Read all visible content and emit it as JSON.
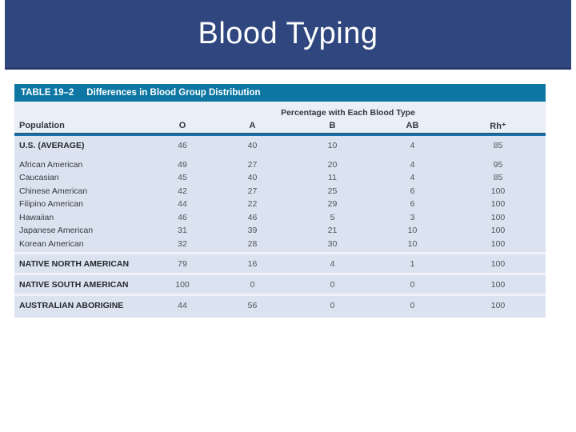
{
  "slide": {
    "title": "Blood Typing"
  },
  "table": {
    "title_label": "TABLE 19–2",
    "title_text": "Differences in Blood Group Distribution",
    "span_header": "Percentage with Each Blood Type",
    "columns": [
      "Population",
      "O",
      "A",
      "B",
      "AB",
      "Rh⁺"
    ],
    "rows": [
      {
        "population": "U.S. (AVERAGE)",
        "values": [
          46,
          40,
          10,
          4,
          85
        ],
        "emphasis": true,
        "section": false,
        "lead": true
      },
      {
        "population": "African American",
        "values": [
          49,
          27,
          20,
          4,
          95
        ],
        "emphasis": false,
        "section": false
      },
      {
        "population": "Caucasian",
        "values": [
          45,
          40,
          11,
          4,
          85
        ],
        "emphasis": false,
        "section": false
      },
      {
        "population": "Chinese American",
        "values": [
          42,
          27,
          25,
          6,
          100
        ],
        "emphasis": false,
        "section": false
      },
      {
        "population": "Filipino American",
        "values": [
          44,
          22,
          29,
          6,
          100
        ],
        "emphasis": false,
        "section": false
      },
      {
        "population": "Hawaiian",
        "values": [
          46,
          46,
          5,
          3,
          100
        ],
        "emphasis": false,
        "section": false
      },
      {
        "population": "Japanese American",
        "values": [
          31,
          39,
          21,
          10,
          100
        ],
        "emphasis": false,
        "section": false
      },
      {
        "population": "Korean American",
        "values": [
          32,
          28,
          30,
          10,
          100
        ],
        "emphasis": false,
        "section": false
      },
      {
        "population": "NATIVE NORTH AMERICAN",
        "values": [
          79,
          16,
          4,
          1,
          100
        ],
        "emphasis": true,
        "section": true
      },
      {
        "population": "NATIVE SOUTH AMERICAN",
        "values": [
          100,
          0,
          0,
          0,
          100
        ],
        "emphasis": true,
        "section": true
      },
      {
        "population": "AUSTRALIAN ABORIGINE",
        "values": [
          44,
          56,
          0,
          0,
          100
        ],
        "emphasis": true,
        "section": true
      }
    ]
  },
  "colors": {
    "banner_bg": "#2f477e",
    "table_title_bg": "#0d76a3",
    "header_bg": "#e9eef7",
    "body_bg": "#dce3f0",
    "rule": "#1d6fa8",
    "title_text": "#ffffff",
    "label_text": "#33383f",
    "value_text": "#4d535c"
  }
}
